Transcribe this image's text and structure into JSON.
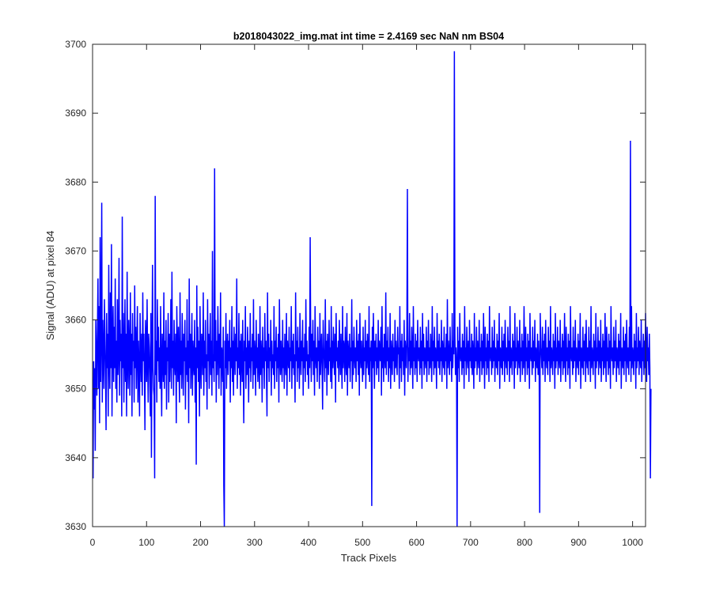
{
  "chart_data": {
    "type": "line",
    "title": "b2018043022_img.mat int time = 2.4169 sec  NaN nm BS04",
    "xlabel": "Track Pixels",
    "ylabel": "Signal (ADU) at pixel 84",
    "xlim": [
      0,
      1024
    ],
    "ylim": [
      3630,
      3700
    ],
    "xticks": [
      0,
      100,
      200,
      300,
      400,
      500,
      600,
      700,
      800,
      900,
      1000
    ],
    "yticks": [
      3630,
      3640,
      3650,
      3660,
      3670,
      3680,
      3690,
      3700
    ],
    "grid": false,
    "legend": "none",
    "series": [
      {
        "color": "#0000ff",
        "x_start": 1,
        "x_step": 1,
        "values": [
          3637,
          3654,
          3647,
          3653,
          3641,
          3660,
          3655,
          3649,
          3658,
          3666,
          3650,
          3662,
          3645,
          3672,
          3651,
          3658,
          3677,
          3648,
          3660,
          3655,
          3650,
          3663,
          3657,
          3652,
          3644,
          3661,
          3653,
          3658,
          3646,
          3668,
          3655,
          3650,
          3664,
          3653,
          3671,
          3646,
          3657,
          3662,
          3651,
          3659,
          3653,
          3666,
          3650,
          3657,
          3648,
          3663,
          3652,
          3655,
          3669,
          3649,
          3660,
          3654,
          3658,
          3646,
          3675,
          3653,
          3661,
          3648,
          3656,
          3663,
          3651,
          3658,
          3646,
          3667,
          3654,
          3650,
          3660,
          3656,
          3649,
          3664,
          3652,
          3658,
          3646,
          3661,
          3654,
          3657,
          3648,
          3665,
          3653,
          3659,
          3650,
          3656,
          3662,
          3648,
          3657,
          3653,
          3646,
          3661,
          3655,
          3651,
          3658,
          3649,
          3664,
          3654,
          3658,
          3652,
          3644,
          3660,
          3657,
          3651,
          3663,
          3654,
          3648,
          3658,
          3656,
          3652,
          3646,
          3661,
          3640,
          3655,
          3668,
          3653,
          3650,
          3649,
          3637,
          3678,
          3652,
          3657,
          3648,
          3663,
          3654,
          3659,
          3651,
          3656,
          3650,
          3662,
          3653,
          3646,
          3658,
          3655,
          3651,
          3664,
          3650,
          3657,
          3652,
          3660,
          3647,
          3656,
          3654,
          3661,
          3648,
          3658,
          3651,
          3655,
          3663,
          3650,
          3667,
          3653,
          3657,
          3649,
          3660,
          3654,
          3652,
          3658,
          3645,
          3662,
          3656,
          3651,
          3659,
          3653,
          3648,
          3664,
          3652,
          3657,
          3650,
          3661,
          3655,
          3649,
          3658,
          3654,
          3660,
          3647,
          3656,
          3652,
          3663,
          3651,
          3657,
          3645,
          3666,
          3653,
          3658,
          3650,
          3655,
          3661,
          3649,
          3657,
          3654,
          3652,
          3660,
          3648,
          3656,
          3639,
          3665,
          3653,
          3659,
          3651,
          3657,
          3646,
          3662,
          3654,
          3650,
          3658,
          3656,
          3652,
          3664,
          3649,
          3657,
          3653,
          3660,
          3651,
          3655,
          3647,
          3663,
          3654,
          3658,
          3650,
          3656,
          3661,
          3652,
          3657,
          3649,
          3670,
          3653,
          3655,
          3651,
          3682,
          3654,
          3660,
          3648,
          3657,
          3652,
          3662,
          3656,
          3650,
          3658,
          3653,
          3664,
          3649,
          3656,
          3655,
          3651,
          3659,
          3636,
          3630,
          3657,
          3653,
          3661,
          3650,
          3655,
          3658,
          3652,
          3657,
          3654,
          3660,
          3648,
          3656,
          3653,
          3662,
          3651,
          3657,
          3649,
          3659,
          3655,
          3652,
          3658,
          3654,
          3666,
          3650,
          3656,
          3653,
          3661,
          3652,
          3657,
          3649,
          3658,
          3655,
          3651,
          3660,
          3653,
          3645,
          3657,
          3654,
          3662,
          3650,
          3656,
          3652,
          3659,
          3655,
          3648,
          3657,
          3653,
          3661,
          3651,
          3656,
          3654,
          3658,
          3650,
          3663,
          3652,
          3657,
          3655,
          3649,
          3660,
          3653,
          3656,
          3651,
          3658,
          3654,
          3650,
          3662,
          3652,
          3657,
          3655,
          3648,
          3659,
          3653,
          3656,
          3650,
          3661,
          3654,
          3657,
          3652,
          3646,
          3664,
          3653,
          3658,
          3651,
          3656,
          3654,
          3660,
          3649,
          3657,
          3653,
          3655,
          3652,
          3662,
          3650,
          3657,
          3654,
          3659,
          3651,
          3656,
          3653,
          3658,
          3648,
          3663,
          3655,
          3652,
          3657,
          3654,
          3651,
          3660,
          3653,
          3656,
          3650,
          3658,
          3654,
          3652,
          3661,
          3649,
          3657,
          3655,
          3653,
          3659,
          3651,
          3656,
          3654,
          3662,
          3650,
          3657,
          3653,
          3658,
          3652,
          3655,
          3648,
          3664,
          3654,
          3657,
          3651,
          3659,
          3653,
          3656,
          3650,
          3661,
          3655,
          3652,
          3657,
          3654,
          3660,
          3649,
          3656,
          3653,
          3658,
          3651,
          3663,
          3654,
          3657,
          3652,
          3655,
          3650,
          3659,
          3653,
          3672,
          3656,
          3651,
          3658,
          3654,
          3660,
          3652,
          3657,
          3649,
          3662,
          3655,
          3653,
          3656,
          3651,
          3659,
          3654,
          3657,
          3650,
          3661,
          3652,
          3655,
          3658,
          3653,
          3647,
          3660,
          3656,
          3654,
          3651,
          3663,
          3653,
          3657,
          3649,
          3658,
          3655,
          3652,
          3660,
          3654,
          3656,
          3651,
          3662,
          3650,
          3657,
          3653,
          3659,
          3655,
          3652,
          3658,
          3648,
          3661,
          3654,
          3656,
          3653,
          3657,
          3651,
          3660,
          3655,
          3652,
          3658,
          3654,
          3650,
          3662,
          3653,
          3657,
          3656,
          3651,
          3659,
          3654,
          3652,
          3661,
          3649,
          3657,
          3655,
          3653,
          3658,
          3651,
          3656,
          3654,
          3663,
          3650,
          3657,
          3652,
          3659,
          3655,
          3653,
          3656,
          3651,
          3660,
          3654,
          3657,
          3652,
          3658,
          3649,
          3661,
          3655,
          3653,
          3657,
          3654,
          3651,
          3659,
          3652,
          3656,
          3654,
          3660,
          3650,
          3657,
          3653,
          3658,
          3655,
          3652,
          3662,
          3651,
          3656,
          3654,
          3657,
          3633,
          3659,
          3653,
          3661,
          3655,
          3650,
          3657,
          3654,
          3658,
          3652,
          3656,
          3653,
          3660,
          3651,
          3657,
          3655,
          3654,
          3659,
          3649,
          3662,
          3653,
          3656,
          3651,
          3658,
          3655,
          3653,
          3664,
          3652,
          3657,
          3654,
          3659,
          3651,
          3656,
          3653,
          3661,
          3650,
          3657,
          3655,
          3652,
          3658,
          3654,
          3656,
          3651,
          3660,
          3653,
          3657,
          3654,
          3652,
          3659,
          3655,
          3656,
          3650,
          3662,
          3653,
          3657,
          3651,
          3658,
          3654,
          3656,
          3652,
          3660,
          3649,
          3657,
          3655,
          3653,
          3658,
          3679,
          3651,
          3656,
          3654,
          3661,
          3652,
          3657,
          3653,
          3659,
          3655,
          3650,
          3662,
          3654,
          3656,
          3652,
          3658,
          3653,
          3657,
          3651,
          3660,
          3655,
          3654,
          3656,
          3652,
          3659,
          3653,
          3657,
          3650,
          3661,
          3654,
          3658,
          3652,
          3656,
          3655,
          3653,
          3659,
          3651,
          3657,
          3654,
          3660,
          3652,
          3656,
          3653,
          3658,
          3655,
          3651,
          3662,
          3654,
          3657,
          3652,
          3659,
          3653,
          3656,
          3655,
          3650,
          3661,
          3654,
          3657,
          3653,
          3658,
          3652,
          3656,
          3654,
          3660,
          3651,
          3657,
          3655,
          3653,
          3659,
          3652,
          3656,
          3654,
          3658,
          3650,
          3663,
          3653,
          3657,
          3655,
          3652,
          3659,
          3654,
          3656,
          3651,
          3661,
          3653,
          3657,
          3655,
          3699,
          3658,
          3652,
          3656,
          3654,
          3630,
          3659,
          3653,
          3657,
          3651,
          3661,
          3655,
          3654,
          3656,
          3652,
          3658,
          3653,
          3657,
          3650,
          3662,
          3654,
          3656,
          3652,
          3659,
          3655,
          3653,
          3657,
          3651,
          3660,
          3654,
          3656,
          3653,
          3658,
          3652,
          3657,
          3655,
          3650,
          3661,
          3653,
          3656,
          3654,
          3659,
          3652,
          3657,
          3655,
          3653,
          3660,
          3651,
          3656,
          3654,
          3658,
          3652,
          3657,
          3653,
          3661,
          3655,
          3650,
          3659,
          3654,
          3656,
          3652,
          3658,
          3653,
          3657,
          3651,
          3662,
          3655,
          3654,
          3656,
          3652,
          3659,
          3653,
          3657,
          3654,
          3660,
          3651,
          3656,
          3655,
          3653,
          3658,
          3652,
          3657,
          3654,
          3661,
          3650,
          3656,
          3655,
          3653,
          3659,
          3652,
          3657,
          3654,
          3658,
          3651,
          3660,
          3655,
          3653,
          3656,
          3652,
          3659,
          3654,
          3657,
          3651,
          3662,
          3653,
          3656,
          3655,
          3652,
          3658,
          3654,
          3657,
          3650,
          3661,
          3653,
          3656,
          3654,
          3659,
          3652,
          3657,
          3655,
          3653,
          3660,
          3651,
          3656,
          3654,
          3658,
          3652,
          3657,
          3653,
          3662,
          3655,
          3651,
          3659,
          3654,
          3656,
          3652,
          3658,
          3653,
          3657,
          3650,
          3661,
          3655,
          3654,
          3656,
          3652,
          3659,
          3653,
          3657,
          3654,
          3660,
          3651,
          3656,
          3655,
          3653,
          3658,
          3652,
          3657,
          3654,
          3632,
          3661,
          3656,
          3655,
          3653,
          3659,
          3652,
          3657,
          3654,
          3658,
          3651,
          3660,
          3655,
          3653,
          3656,
          3652,
          3659,
          3654,
          3657,
          3651,
          3662,
          3653,
          3656,
          3655,
          3652,
          3658,
          3654,
          3657,
          3650,
          3661,
          3653,
          3656,
          3654,
          3659,
          3652,
          3657,
          3655,
          3653,
          3660,
          3651,
          3656,
          3654,
          3658,
          3652,
          3657,
          3653,
          3661,
          3655,
          3651,
          3659,
          3654,
          3656,
          3652,
          3658,
          3653,
          3657,
          3650,
          3662,
          3655,
          3654,
          3656,
          3652,
          3659,
          3653,
          3657,
          3654,
          3660,
          3651,
          3656,
          3655,
          3653,
          3658,
          3652,
          3657,
          3654,
          3661,
          3650,
          3656,
          3655,
          3653,
          3659,
          3652,
          3657,
          3654,
          3658,
          3651,
          3660,
          3655,
          3653,
          3656,
          3652,
          3659,
          3654,
          3657,
          3651,
          3662,
          3653,
          3656,
          3655,
          3652,
          3658,
          3654,
          3657,
          3650,
          3661,
          3653,
          3656,
          3654,
          3659,
          3652,
          3657,
          3655,
          3653,
          3660,
          3651,
          3656,
          3654,
          3658,
          3652,
          3657,
          3653,
          3661,
          3655,
          3651,
          3659,
          3654,
          3656,
          3652,
          3658,
          3653,
          3657,
          3650,
          3662,
          3655,
          3654,
          3656,
          3652,
          3659,
          3653,
          3657,
          3654,
          3660,
          3651,
          3656,
          3655,
          3653,
          3658,
          3652,
          3657,
          3654,
          3661,
          3650,
          3656,
          3655,
          3653,
          3659,
          3652,
          3657,
          3654,
          3658,
          3651,
          3660,
          3655,
          3653,
          3656,
          3652,
          3659,
          3654,
          3686,
          3651,
          3662,
          3653,
          3656,
          3655,
          3652,
          3658,
          3654,
          3657,
          3650,
          3661,
          3653,
          3656,
          3654,
          3659,
          3652,
          3657,
          3655,
          3653,
          3660,
          3651,
          3656,
          3654,
          3658,
          3652,
          3657,
          3653,
          3661,
          3655,
          3651,
          3659,
          3654,
          3656,
          3652,
          3658,
          3653,
          3637,
          3650
        ]
      }
    ]
  }
}
